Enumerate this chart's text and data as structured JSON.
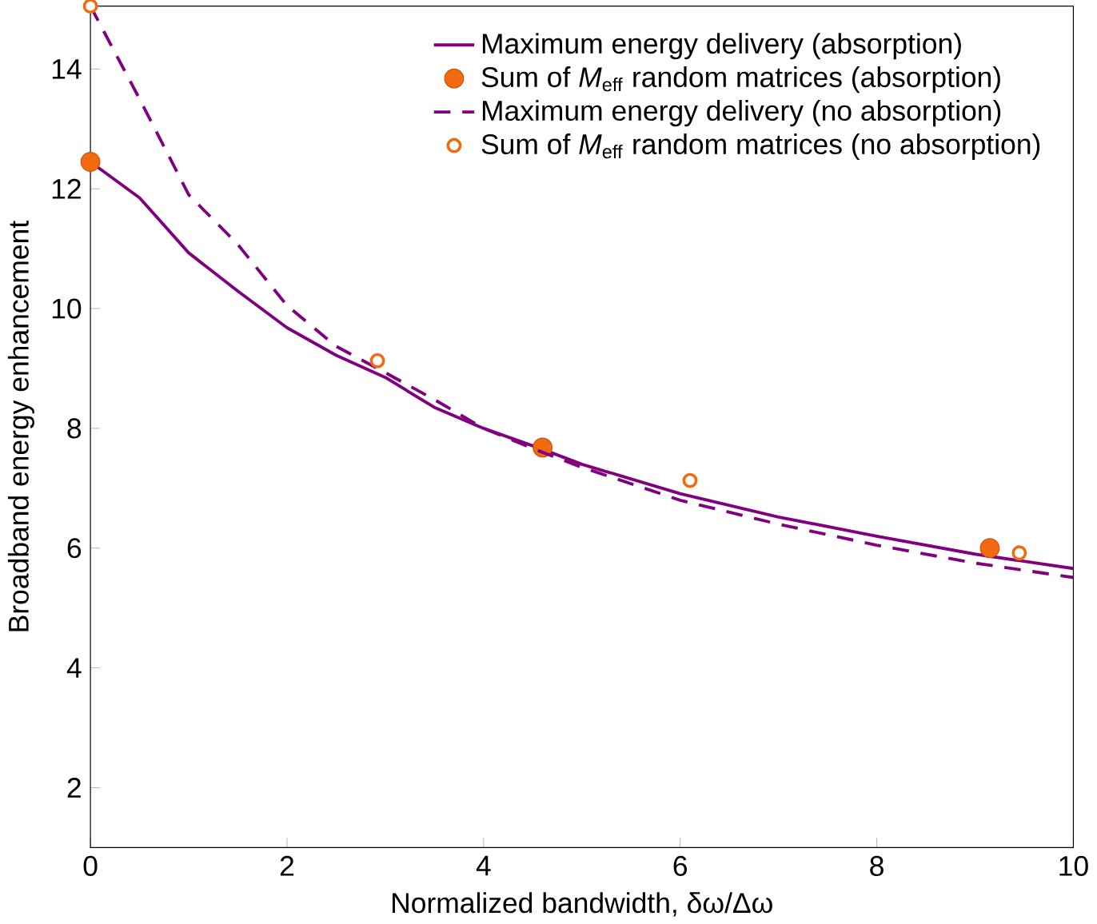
{
  "chart_data": {
    "type": "line",
    "xlabel": "Normalized bandwidth, δω/Δω",
    "ylabel": "Broadband energy enhancement",
    "xlim": [
      0,
      10
    ],
    "ylim": [
      1,
      15.05
    ],
    "xticks": [
      0,
      2,
      4,
      6,
      8,
      10
    ],
    "yticks": [
      2,
      4,
      6,
      8,
      10,
      12,
      14
    ],
    "legend": "top right",
    "grid": false,
    "series": [
      {
        "name": "Maximum energy delivery (absorption)",
        "line_style": "solid",
        "color": "#800080",
        "x": [
          0,
          0.5,
          1,
          1.5,
          2,
          2.5,
          3,
          3.5,
          4,
          4.6,
          5,
          6,
          7,
          8,
          9,
          10
        ],
        "values": [
          12.45,
          11.85,
          10.93,
          10.29,
          9.68,
          9.22,
          8.85,
          8.35,
          8.0,
          7.65,
          7.4,
          6.91,
          6.52,
          6.2,
          5.9,
          5.66
        ]
      },
      {
        "name": "Sum of *M*$_{eff}$ random matrices (absorption)",
        "type": "scatter",
        "marker": "circle",
        "color": "#f26a10",
        "x": [
          0,
          4.6,
          9.15
        ],
        "values": [
          12.45,
          7.68,
          6.0
        ]
      },
      {
        "name": "Maximum energy delivery (no absorption)",
        "line_style": "dashed",
        "color": "#800080",
        "x": [
          0,
          0.5,
          1,
          1.5,
          2,
          2.5,
          3,
          3.5,
          4,
          4.6,
          5,
          6,
          7,
          8,
          9,
          10
        ],
        "values": [
          15.05,
          13.5,
          11.9,
          11.07,
          10.05,
          9.37,
          8.93,
          8.48,
          8.0,
          7.6,
          7.35,
          6.8,
          6.4,
          6.05,
          5.75,
          5.51
        ]
      },
      {
        "name": "Sum of *M*$_{eff}$ random matrices (no absorption)",
        "type": "scatter",
        "marker": "circle",
        "color": "#f26a10",
        "x": [
          0,
          2.92,
          6.1,
          9.45
        ],
        "values": [
          15.05,
          9.13,
          7.13,
          5.92
        ]
      }
    ]
  }
}
